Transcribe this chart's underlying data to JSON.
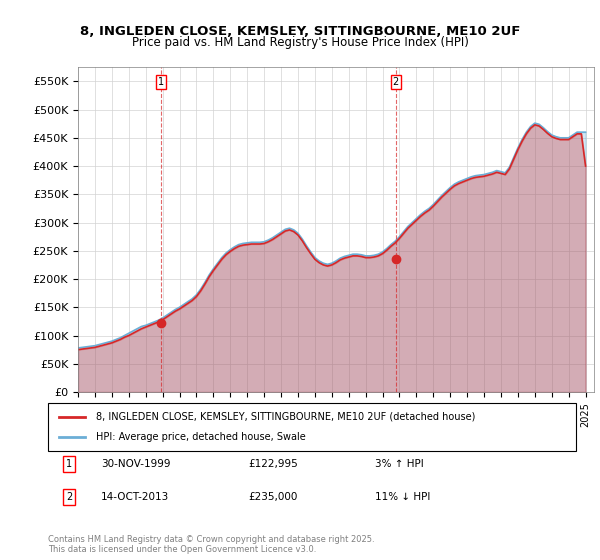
{
  "title_line1": "8, INGLEDEN CLOSE, KEMSLEY, SITTINGBOURNE, ME10 2UF",
  "title_line2": "Price paid vs. HM Land Registry's House Price Index (HPI)",
  "ylabel": "",
  "xlim_start": 1995.0,
  "xlim_end": 2025.5,
  "ylim_min": 0,
  "ylim_max": 575000,
  "yticks": [
    0,
    50000,
    100000,
    150000,
    200000,
    250000,
    300000,
    350000,
    400000,
    450000,
    500000,
    550000
  ],
  "ytick_labels": [
    "£0",
    "£50K",
    "£100K",
    "£150K",
    "£200K",
    "£250K",
    "£300K",
    "£350K",
    "£400K",
    "£450K",
    "£500K",
    "£550K"
  ],
  "hpi_color": "#6baed6",
  "price_color": "#d62728",
  "sale1_x": 1999.917,
  "sale1_y": 122995,
  "sale1_label": "1",
  "sale2_x": 2013.789,
  "sale2_y": 235000,
  "sale2_label": "2",
  "legend_line1": "8, INGLEDEN CLOSE, KEMSLEY, SITTINGBOURNE, ME10 2UF (detached house)",
  "legend_line2": "HPI: Average price, detached house, Swale",
  "annotation1_date": "30-NOV-1999",
  "annotation1_price": "£122,995",
  "annotation1_hpi": "3% ↑ HPI",
  "annotation2_date": "14-OCT-2013",
  "annotation2_price": "£235,000",
  "annotation2_hpi": "11% ↓ HPI",
  "footer": "Contains HM Land Registry data © Crown copyright and database right 2025.\nThis data is licensed under the Open Government Licence v3.0.",
  "xticks": [
    1995,
    1996,
    1997,
    1998,
    1999,
    2000,
    2001,
    2002,
    2003,
    2004,
    2005,
    2006,
    2007,
    2008,
    2009,
    2010,
    2011,
    2012,
    2013,
    2014,
    2015,
    2016,
    2017,
    2018,
    2019,
    2020,
    2021,
    2022,
    2023,
    2024,
    2025
  ],
  "hpi_data_x": [
    1995.0,
    1995.25,
    1995.5,
    1995.75,
    1996.0,
    1996.25,
    1996.5,
    1996.75,
    1997.0,
    1997.25,
    1997.5,
    1997.75,
    1998.0,
    1998.25,
    1998.5,
    1998.75,
    1999.0,
    1999.25,
    1999.5,
    1999.75,
    2000.0,
    2000.25,
    2000.5,
    2000.75,
    2001.0,
    2001.25,
    2001.5,
    2001.75,
    2002.0,
    2002.25,
    2002.5,
    2002.75,
    2003.0,
    2003.25,
    2003.5,
    2003.75,
    2004.0,
    2004.25,
    2004.5,
    2004.75,
    2005.0,
    2005.25,
    2005.5,
    2005.75,
    2006.0,
    2006.25,
    2006.5,
    2006.75,
    2007.0,
    2007.25,
    2007.5,
    2007.75,
    2008.0,
    2008.25,
    2008.5,
    2008.75,
    2009.0,
    2009.25,
    2009.5,
    2009.75,
    2010.0,
    2010.25,
    2010.5,
    2010.75,
    2011.0,
    2011.25,
    2011.5,
    2011.75,
    2012.0,
    2012.25,
    2012.5,
    2012.75,
    2013.0,
    2013.25,
    2013.5,
    2013.75,
    2014.0,
    2014.25,
    2014.5,
    2014.75,
    2015.0,
    2015.25,
    2015.5,
    2015.75,
    2016.0,
    2016.25,
    2016.5,
    2016.75,
    2017.0,
    2017.25,
    2017.5,
    2017.75,
    2018.0,
    2018.25,
    2018.5,
    2018.75,
    2019.0,
    2019.25,
    2019.5,
    2019.75,
    2020.0,
    2020.25,
    2020.5,
    2020.75,
    2021.0,
    2021.25,
    2021.5,
    2021.75,
    2022.0,
    2022.25,
    2022.5,
    2022.75,
    2023.0,
    2023.25,
    2023.5,
    2023.75,
    2024.0,
    2024.25,
    2024.5,
    2024.75,
    2025.0
  ],
  "hpi_data_y": [
    78000,
    79000,
    80000,
    81000,
    82000,
    84000,
    86000,
    88000,
    90000,
    93000,
    96000,
    100000,
    104000,
    108000,
    112000,
    116000,
    118000,
    121000,
    124000,
    127000,
    131000,
    136000,
    141000,
    146000,
    150000,
    155000,
    160000,
    165000,
    172000,
    182000,
    194000,
    207000,
    218000,
    228000,
    238000,
    246000,
    252000,
    257000,
    261000,
    263000,
    264000,
    265000,
    265000,
    265000,
    266000,
    269000,
    273000,
    278000,
    283000,
    288000,
    290000,
    287000,
    281000,
    271000,
    259000,
    248000,
    238000,
    232000,
    228000,
    226000,
    228000,
    232000,
    237000,
    240000,
    242000,
    244000,
    244000,
    243000,
    241000,
    241000,
    242000,
    244000,
    248000,
    254000,
    261000,
    267000,
    275000,
    284000,
    293000,
    300000,
    307000,
    314000,
    320000,
    325000,
    332000,
    340000,
    348000,
    355000,
    362000,
    368000,
    372000,
    375000,
    378000,
    381000,
    383000,
    384000,
    385000,
    387000,
    389000,
    392000,
    390000,
    388000,
    398000,
    415000,
    432000,
    447000,
    460000,
    470000,
    476000,
    474000,
    468000,
    461000,
    455000,
    452000,
    450000,
    450000,
    450000,
    455000,
    460000,
    460000,
    460000
  ],
  "price_data_x": [
    1995.0,
    1995.25,
    1995.5,
    1995.75,
    1996.0,
    1996.25,
    1996.5,
    1996.75,
    1997.0,
    1997.25,
    1997.5,
    1997.75,
    1998.0,
    1998.25,
    1998.5,
    1998.75,
    1999.0,
    1999.25,
    1999.5,
    1999.75,
    2000.0,
    2000.25,
    2000.5,
    2000.75,
    2001.0,
    2001.25,
    2001.5,
    2001.75,
    2002.0,
    2002.25,
    2002.5,
    2002.75,
    2003.0,
    2003.25,
    2003.5,
    2003.75,
    2004.0,
    2004.25,
    2004.5,
    2004.75,
    2005.0,
    2005.25,
    2005.5,
    2005.75,
    2006.0,
    2006.25,
    2006.5,
    2006.75,
    2007.0,
    2007.25,
    2007.5,
    2007.75,
    2008.0,
    2008.25,
    2008.5,
    2008.75,
    2009.0,
    2009.25,
    2009.5,
    2009.75,
    2010.0,
    2010.25,
    2010.5,
    2010.75,
    2011.0,
    2011.25,
    2011.5,
    2011.75,
    2012.0,
    2012.25,
    2012.5,
    2012.75,
    2013.0,
    2013.25,
    2013.5,
    2013.75,
    2014.0,
    2014.25,
    2014.5,
    2014.75,
    2015.0,
    2015.25,
    2015.5,
    2015.75,
    2016.0,
    2016.25,
    2016.5,
    2016.75,
    2017.0,
    2017.25,
    2017.5,
    2017.75,
    2018.0,
    2018.25,
    2018.5,
    2018.75,
    2019.0,
    2019.25,
    2019.5,
    2019.75,
    2020.0,
    2020.25,
    2020.5,
    2020.75,
    2021.0,
    2021.25,
    2021.5,
    2021.75,
    2022.0,
    2022.25,
    2022.5,
    2022.75,
    2023.0,
    2023.25,
    2023.5,
    2023.75,
    2024.0,
    2024.25,
    2024.5,
    2024.75,
    2025.0
  ],
  "price_data_y": [
    75000,
    76000,
    77000,
    78000,
    79000,
    81000,
    83000,
    85000,
    87000,
    90000,
    93000,
    97000,
    100000,
    104000,
    108000,
    112000,
    115000,
    118000,
    121000,
    124000,
    128000,
    133000,
    138000,
    143000,
    147000,
    152000,
    157000,
    162000,
    169000,
    179000,
    191000,
    204000,
    215000,
    225000,
    235000,
    243000,
    249000,
    254000,
    258000,
    260000,
    261000,
    262000,
    262000,
    262000,
    263000,
    266000,
    270000,
    275000,
    280000,
    285000,
    287000,
    284000,
    278000,
    268000,
    256000,
    245000,
    235000,
    229000,
    225000,
    223000,
    225000,
    229000,
    234000,
    237000,
    239000,
    241000,
    241000,
    240000,
    238000,
    238000,
    239000,
    241000,
    245000,
    251000,
    258000,
    264000,
    272000,
    281000,
    290000,
    297000,
    304000,
    311000,
    317000,
    322000,
    329000,
    337000,
    345000,
    352000,
    359000,
    365000,
    369000,
    372000,
    375000,
    378000,
    380000,
    381000,
    382000,
    384000,
    386000,
    389000,
    387000,
    385000,
    395000,
    412000,
    429000,
    444000,
    457000,
    467000,
    473000,
    471000,
    465000,
    458000,
    452000,
    449000,
    447000,
    447000,
    447000,
    452000,
    457000,
    457000,
    400000
  ]
}
